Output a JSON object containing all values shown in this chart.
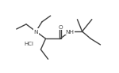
{
  "bg_color": "#ffffff",
  "line_color": "#404040",
  "text_color": "#404040",
  "line_width": 1.0,
  "font_size": 5.2,
  "font_size_hcl": 5.0
}
